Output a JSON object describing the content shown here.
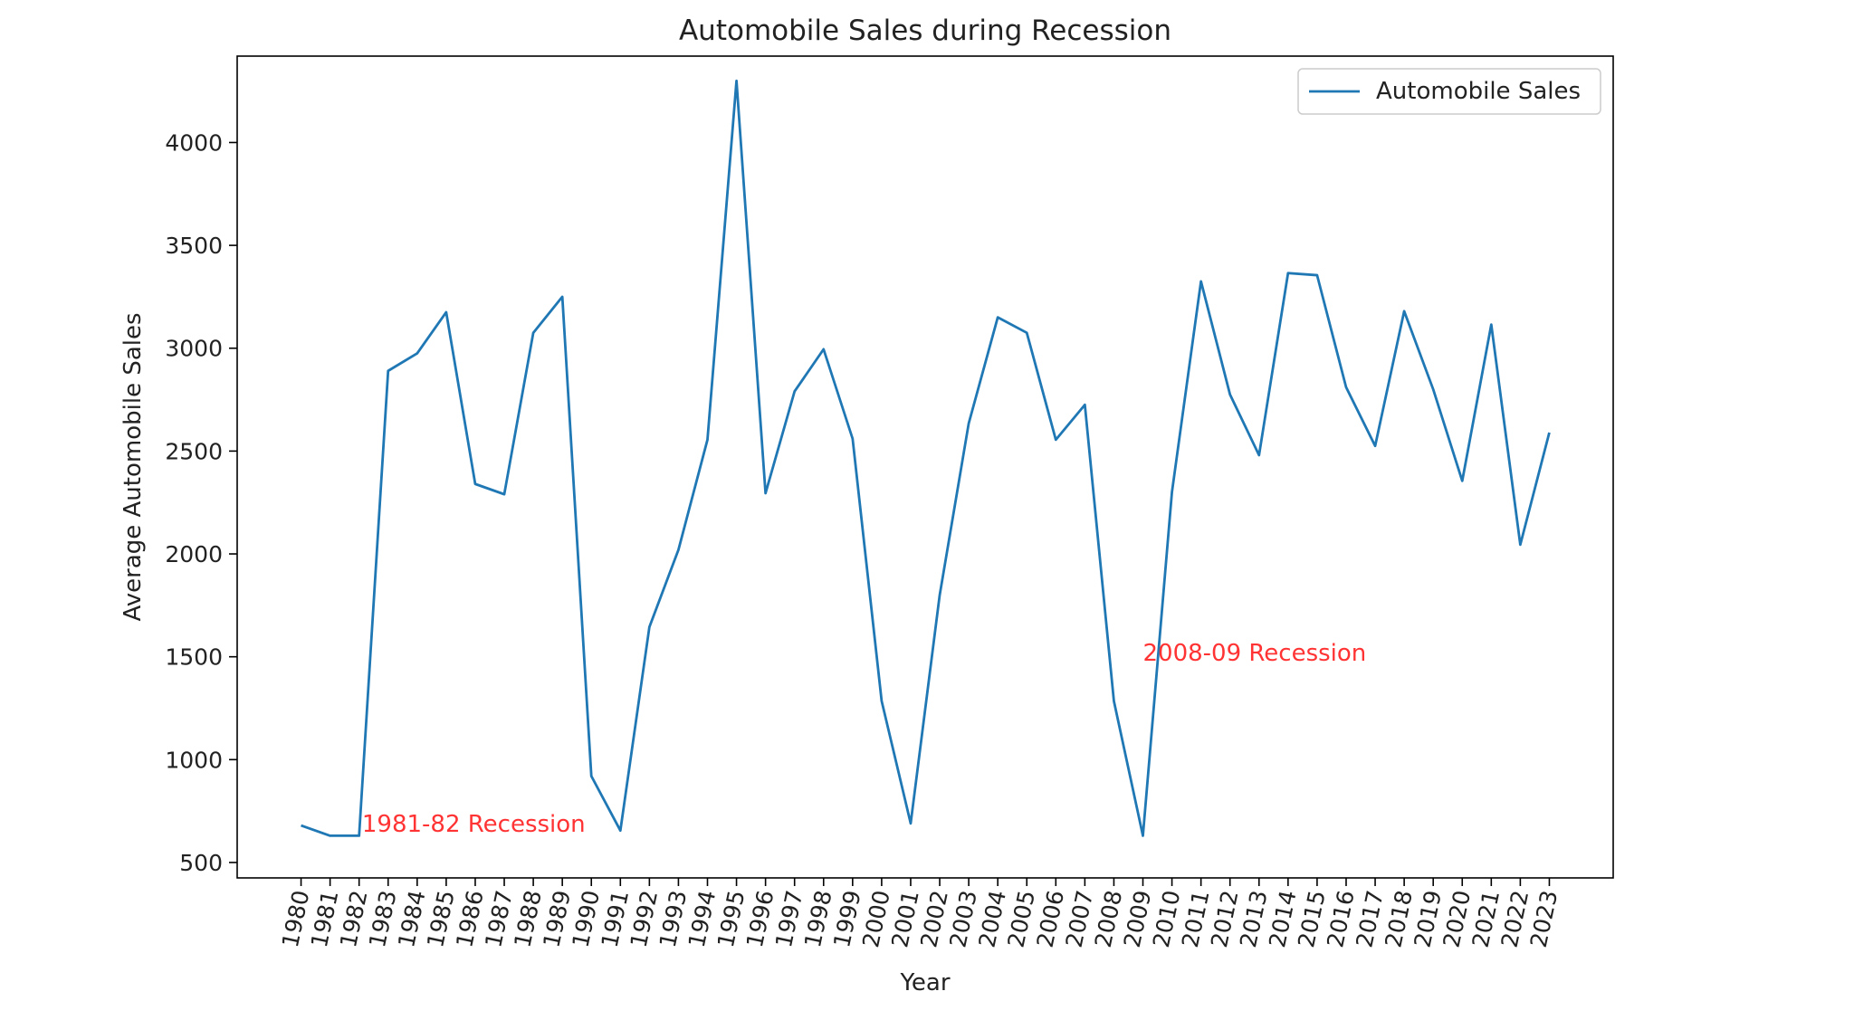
{
  "chart_data": {
    "type": "line",
    "title": "Automobile Sales during Recession",
    "xlabel": "Year",
    "ylabel": "Average Automobile Sales",
    "x": [
      1980,
      1981,
      1982,
      1983,
      1984,
      1985,
      1986,
      1987,
      1988,
      1989,
      1990,
      1991,
      1992,
      1993,
      1994,
      1995,
      1996,
      1997,
      1998,
      1999,
      2000,
      2001,
      2002,
      2003,
      2004,
      2005,
      2006,
      2007,
      2008,
      2009,
      2010,
      2011,
      2012,
      2013,
      2014,
      2015,
      2016,
      2017,
      2018,
      2019,
      2020,
      2021,
      2022,
      2023
    ],
    "series": [
      {
        "name": "Automobile Sales",
        "color": "#1f77b4",
        "values": [
          680,
          630,
          630,
          2890,
          2975,
          3175,
          2340,
          2290,
          3075,
          3250,
          920,
          655,
          1645,
          2020,
          2555,
          4300,
          2295,
          2790,
          2995,
          2560,
          1285,
          690,
          1800,
          2635,
          3150,
          3075,
          2555,
          2725,
          1285,
          630,
          2300,
          3325,
          2775,
          2480,
          3365,
          3355,
          2810,
          2525,
          3180,
          2800,
          2355,
          3115,
          2045,
          2590
        ]
      }
    ],
    "xlim": [
      1977.8,
      2025.2
    ],
    "ylim": [
      425,
      4420
    ],
    "yticks": [
      500,
      1000,
      1500,
      2000,
      2500,
      3000,
      3500,
      4000
    ],
    "legend": "top-right",
    "grid": false,
    "annotations": [
      {
        "text": "1981-82 Recession",
        "x": 1982.1,
        "y": 650,
        "color": "#ff3333"
      },
      {
        "text": "2008-09 Recession",
        "x": 2009.0,
        "y": 1480,
        "color": "#ff3333"
      }
    ]
  }
}
